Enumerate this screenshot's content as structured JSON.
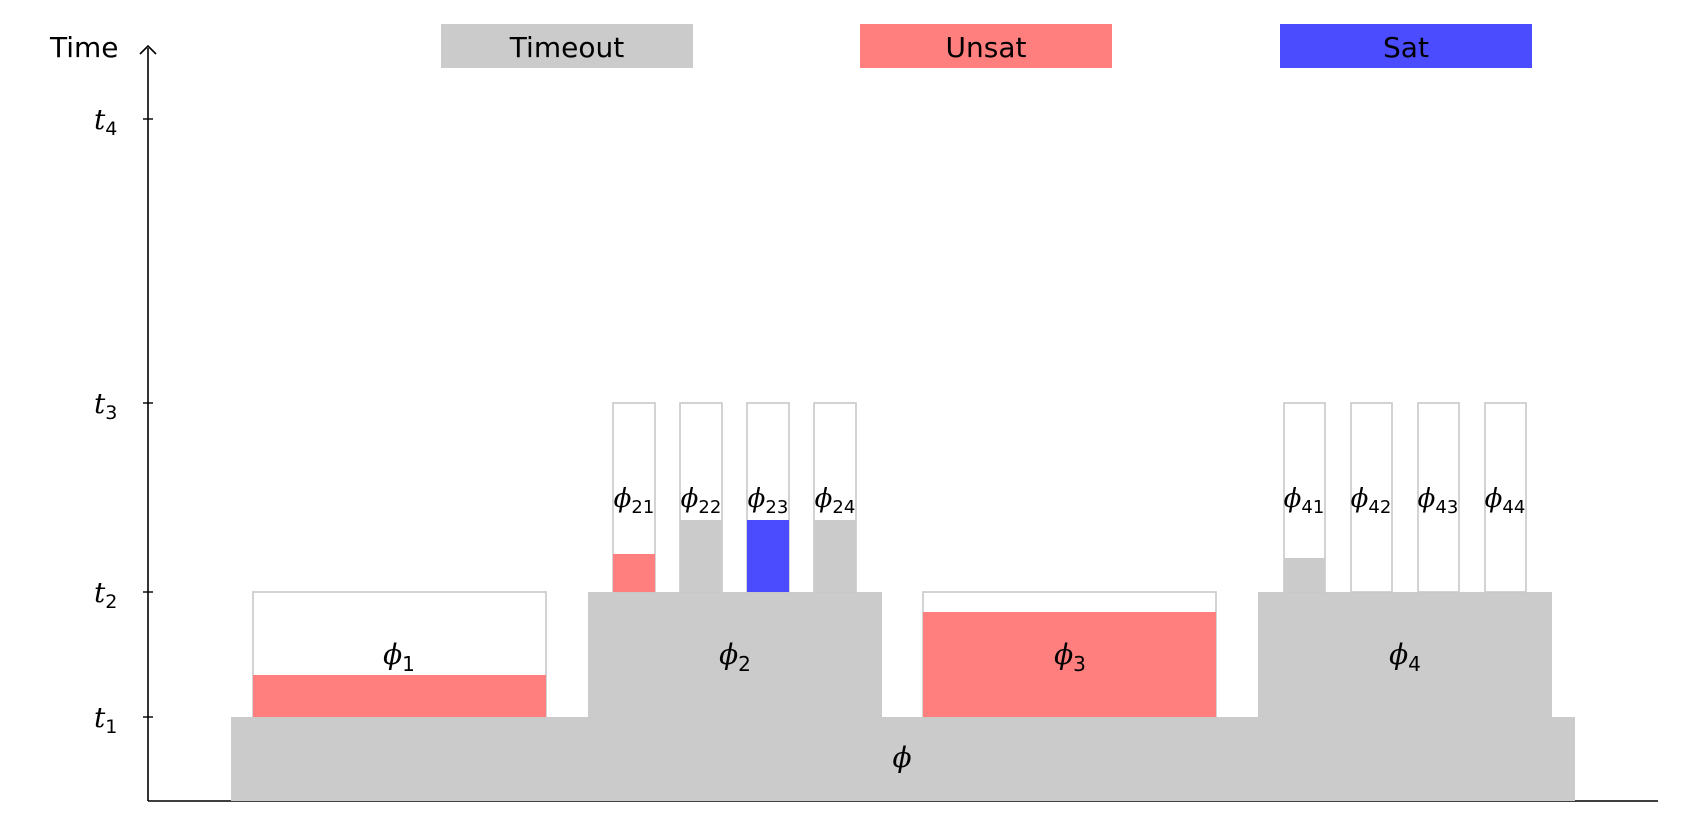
{
  "colors": {
    "timeout": "#cbcbcb",
    "unsat": "#ff7f7f",
    "sat": "#4c4cff",
    "outline": "#c8c8c8"
  },
  "axis": {
    "title": "Time",
    "ticks": [
      {
        "base": "t",
        "sub": "1"
      },
      {
        "base": "t",
        "sub": "2"
      },
      {
        "base": "t",
        "sub": "3"
      },
      {
        "base": "t",
        "sub": "4"
      }
    ]
  },
  "legend": {
    "timeout": "Timeout",
    "unsat": "Unsat",
    "sat": "Sat"
  },
  "formulas": {
    "root": {
      "base": "ϕ",
      "sub": ""
    },
    "phi1": {
      "base": "ϕ",
      "sub": "1"
    },
    "phi2": {
      "base": "ϕ",
      "sub": "2"
    },
    "phi3": {
      "base": "ϕ",
      "sub": "3"
    },
    "phi4": {
      "base": "ϕ",
      "sub": "4"
    },
    "phi21": {
      "base": "ϕ",
      "sub": "21"
    },
    "phi22": {
      "base": "ϕ",
      "sub": "22"
    },
    "phi23": {
      "base": "ϕ",
      "sub": "23"
    },
    "phi24": {
      "base": "ϕ",
      "sub": "24"
    },
    "phi41": {
      "base": "ϕ",
      "sub": "41"
    },
    "phi42": {
      "base": "ϕ",
      "sub": "42"
    },
    "phi43": {
      "base": "ϕ",
      "sub": "43"
    },
    "phi44": {
      "base": "ϕ",
      "sub": "44"
    }
  }
}
